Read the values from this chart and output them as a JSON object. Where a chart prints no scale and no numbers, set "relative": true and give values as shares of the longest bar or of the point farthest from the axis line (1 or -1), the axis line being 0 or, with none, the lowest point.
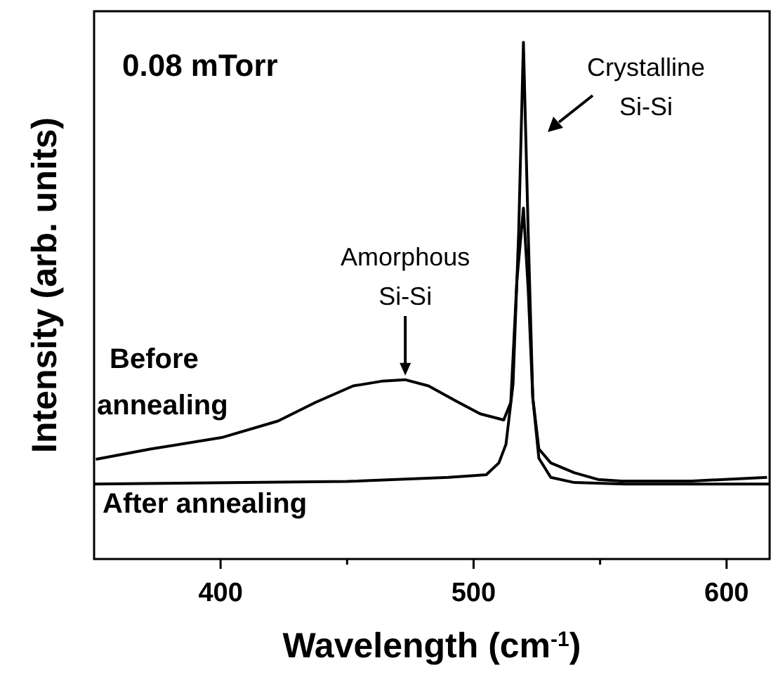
{
  "chart_data": {
    "type": "line",
    "relative": true,
    "xlabel": "Wavelength (cm$^{-1}$)",
    "ylabel": "Intensity (arb. units)",
    "xlim": [
      350,
      617
    ],
    "xticks": [
      400,
      {
        "value": 450,
        "label": null
      },
      500,
      {
        "value": 550,
        "label": null
      },
      600
    ],
    "grid": false,
    "marker": "none",
    "line_style": "solid",
    "annotations": [
      "0.08 mTorr",
      {
        "text": "Amorphous Si-Si",
        "x": 473,
        "y": 0.347
      },
      "Crystalline Si-Si"
    ],
    "series": [
      {
        "name": "Before annealing",
        "color": "#000000",
        "x": [
          350.7,
          372.5,
          400.4,
          422.7,
          437.5,
          452.4,
          463.6,
          472.9,
          482.2,
          493.3,
          502.6,
          511.9,
          514.7,
          517.1,
          519.7,
          521.6,
          523.4,
          525.8,
          530.5,
          539.8,
          549.1,
          558.4,
          586.2,
          616
        ],
        "values": [
          0.193,
          0.213,
          0.235,
          0.267,
          0.303,
          0.335,
          0.344,
          0.347,
          0.335,
          0.305,
          0.281,
          0.269,
          0.303,
          0.538,
          0.679,
          0.52,
          0.312,
          0.213,
          0.186,
          0.167,
          0.154,
          0.151,
          0.151,
          0.158
        ]
      },
      {
        "name": "After annealing",
        "color": "#000000",
        "x": [
          350,
          450,
          490,
          505,
          510,
          512.8,
          515.6,
          517.8,
          519.7,
          521.6,
          523.4,
          525.8,
          530.5,
          539.8,
          560,
          617
        ],
        "values": [
          0.145,
          0.15,
          0.158,
          0.163,
          0.186,
          0.222,
          0.339,
          0.629,
          1,
          0.629,
          0.312,
          0.195,
          0.158,
          0.148,
          0.145,
          0.145
        ]
      }
    ]
  }
}
